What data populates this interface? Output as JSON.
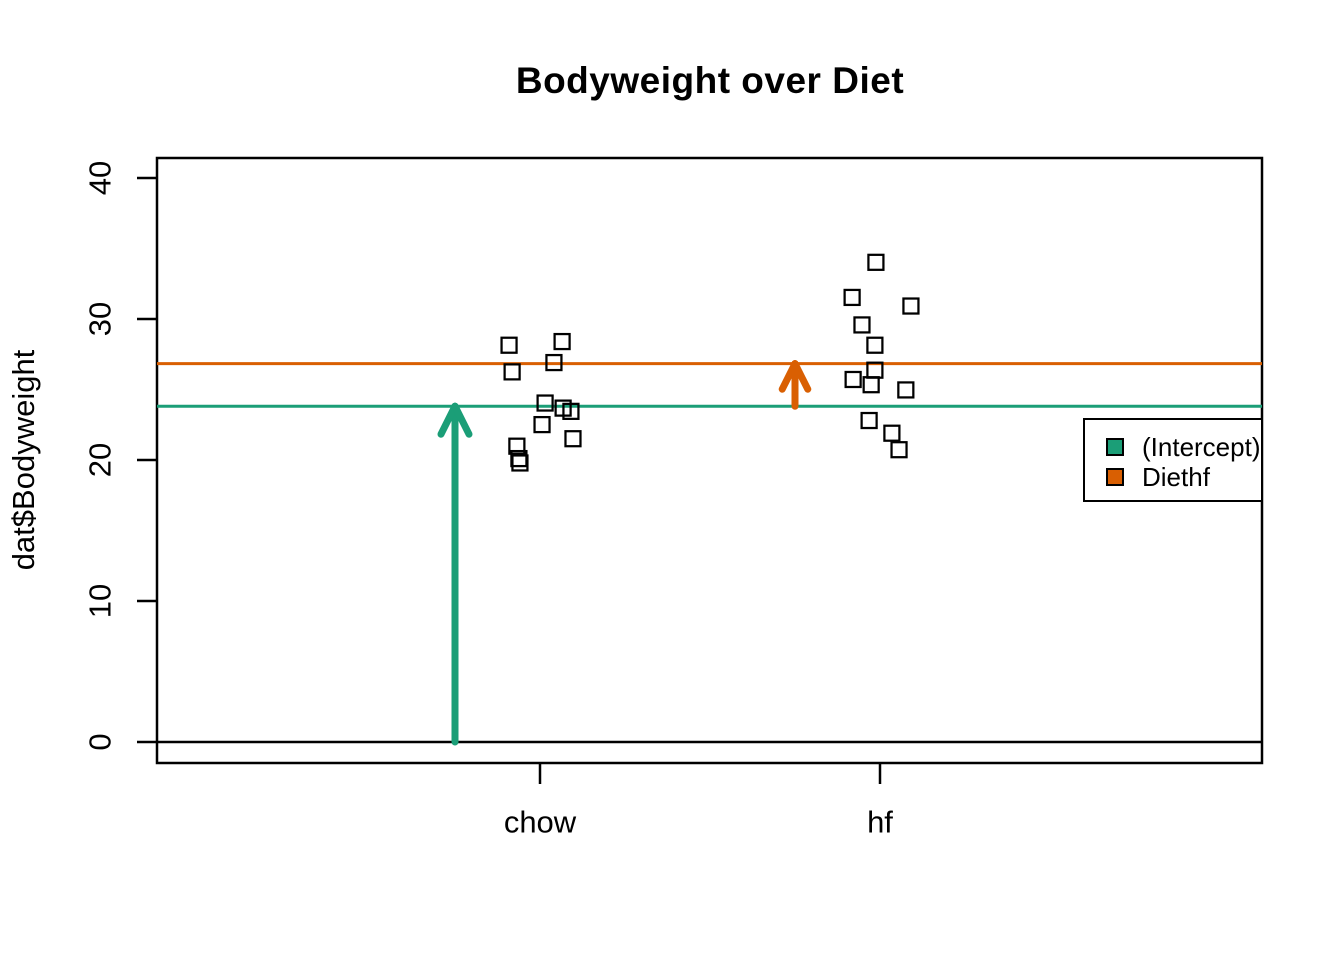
{
  "chart_data": {
    "type": "scatter",
    "title": "Bodyweight over Diet",
    "xlabel": "",
    "ylabel": "dat$Bodyweight",
    "categories": [
      "chow",
      "hf"
    ],
    "category_positions": [
      1,
      2
    ],
    "xlim": [
      0,
      3
    ],
    "ylim": [
      0,
      40
    ],
    "yticks": [
      0,
      10,
      20,
      30,
      40
    ],
    "grid": false,
    "point_marker": "open-square",
    "series": [
      {
        "name": "chow",
        "x": [
          1.097,
          0.909,
          1.015,
          1.091,
          1.068,
          0.941,
          1.065,
          0.932,
          1.006,
          0.938,
          1.041,
          0.918
        ],
        "y": [
          21.51,
          28.14,
          24.04,
          23.45,
          23.68,
          19.79,
          28.4,
          20.98,
          22.51,
          20.1,
          26.91,
          26.25
        ]
      },
      {
        "name": "hf",
        "x": [
          1.921,
          1.985,
          1.968,
          1.974,
          2.076,
          1.985,
          1.947,
          2.091,
          1.988,
          2.035,
          1.918,
          2.056
        ],
        "y": [
          25.71,
          26.37,
          22.8,
          25.34,
          24.97,
          28.14,
          29.58,
          30.92,
          34.02,
          21.9,
          31.53,
          20.73
        ]
      }
    ],
    "hlines": [
      {
        "name": "zero-line",
        "value": 0,
        "color": "#000000",
        "width": 2.5
      },
      {
        "name": "intercept-line",
        "value": 23.813,
        "color": "#1B9E77",
        "width": 3
      },
      {
        "name": "diethf-line",
        "value": 26.833,
        "color": "#D95F02",
        "width": 3
      }
    ],
    "arrows": [
      {
        "name": "intercept-arrow",
        "x": 0.75,
        "from": 0,
        "to": 23.813,
        "color": "#1B9E77"
      },
      {
        "name": "diethf-arrow",
        "x": 1.75,
        "from": 23.813,
        "to": 26.833,
        "color": "#D95F02"
      }
    ],
    "legend": {
      "position": "right",
      "items": [
        {
          "label": "(Intercept)",
          "color": "#1B9E77"
        },
        {
          "label": "Diethf",
          "color": "#D95F02"
        }
      ]
    }
  }
}
